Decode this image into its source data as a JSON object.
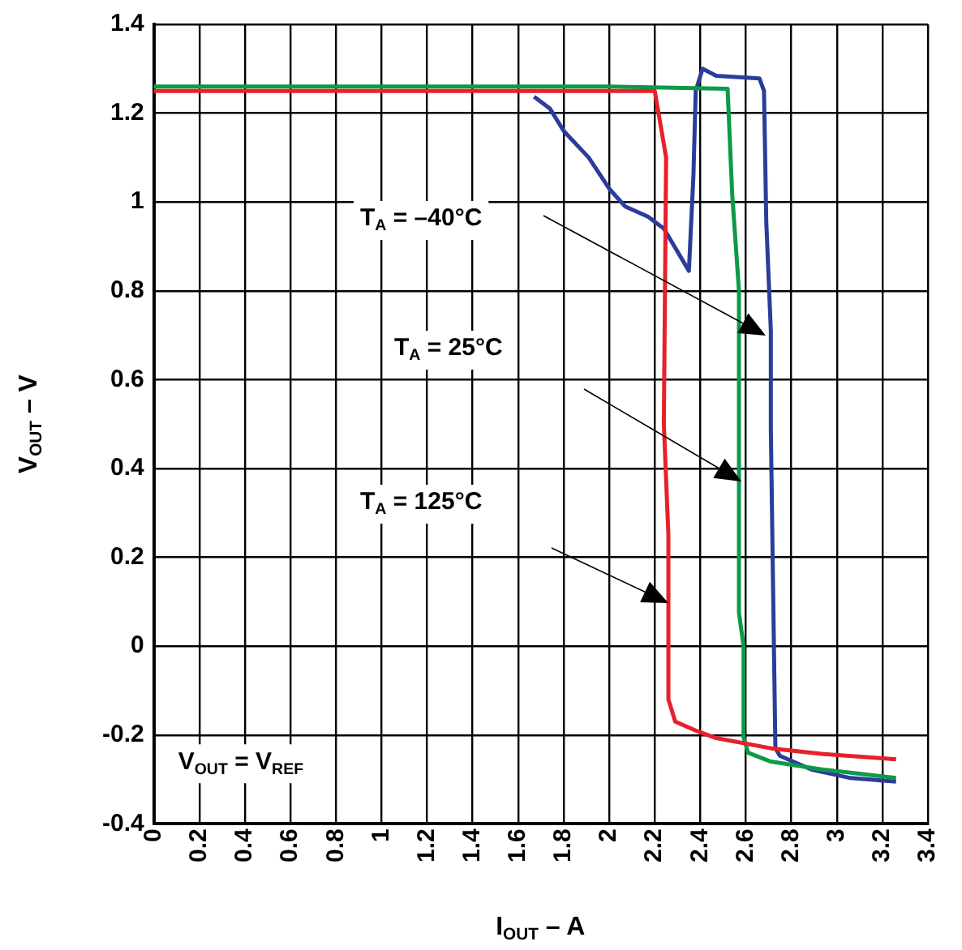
{
  "chart_data": {
    "type": "line",
    "xlabel": "I$_{OUT}$ – A",
    "ylabel": "V$_{OUT}$ – V",
    "xlim": [
      0,
      3.4
    ],
    "xticks": [
      0,
      0.2,
      0.4,
      0.6,
      0.8,
      1,
      1.2,
      1.4,
      1.6,
      1.8,
      2,
      2.2,
      2.4,
      2.6,
      2.8,
      3,
      3.2,
      3.4
    ],
    "ylim": [
      -0.4,
      1.4
    ],
    "yticks": [
      -0.4,
      -0.2,
      0,
      0.2,
      0.4,
      0.6,
      0.8,
      1,
      1.2,
      1.4
    ],
    "grid": true,
    "legend": false,
    "line_style": "solid",
    "series": [
      {
        "color": "#e8202a",
        "x": [
          0,
          0.5,
          1,
          1.5,
          2,
          2.2,
          2.25,
          2.24,
          2.26,
          2.26,
          2.29,
          2.38,
          2.47,
          2.71,
          2.94,
          3.26
        ],
        "values": [
          1.25,
          1.25,
          1.25,
          1.25,
          1.25,
          1.25,
          1.1,
          0.5,
          0.25,
          -0.12,
          -0.17,
          -0.19,
          -0.207,
          -0.23,
          -0.243,
          -0.255
        ]
      },
      {
        "color": "#0c9a4a",
        "x": [
          0,
          0.5,
          1,
          1.5,
          2,
          2.52,
          2.54,
          2.57,
          2.57,
          2.59,
          2.59,
          2.61,
          2.71,
          2.94,
          3.26
        ],
        "values": [
          1.26,
          1.26,
          1.26,
          1.26,
          1.26,
          1.255,
          1.02,
          0.8,
          0.075,
          0,
          -0.205,
          -0.24,
          -0.26,
          -0.278,
          -0.297
        ]
      },
      {
        "color": "#2b3d9a",
        "x": [
          1.67,
          1.74,
          1.8,
          1.91,
          2,
          2.07,
          2.17,
          2.24,
          2.35,
          2.37,
          2.38,
          2.41,
          2.47,
          2.66,
          2.68,
          2.69,
          2.71,
          2.71,
          2.72,
          2.73,
          2.75,
          2.89,
          3.06,
          3.26
        ],
        "values": [
          1.237,
          1.21,
          1.16,
          1.1,
          1.03,
          0.99,
          0.967,
          0.94,
          0.845,
          1.06,
          1.25,
          1.3,
          1.284,
          1.278,
          1.25,
          0.955,
          0.71,
          0.49,
          0.125,
          -0.23,
          -0.247,
          -0.278,
          -0.297,
          -0.305
        ]
      }
    ],
    "annotations": [
      "T$_{A}$ = –40°C",
      "T$_{A}$ = 25°C",
      "T$_{A}$ = 125°C",
      "V$_{OUT}$ = V$_{REF}$"
    ]
  }
}
